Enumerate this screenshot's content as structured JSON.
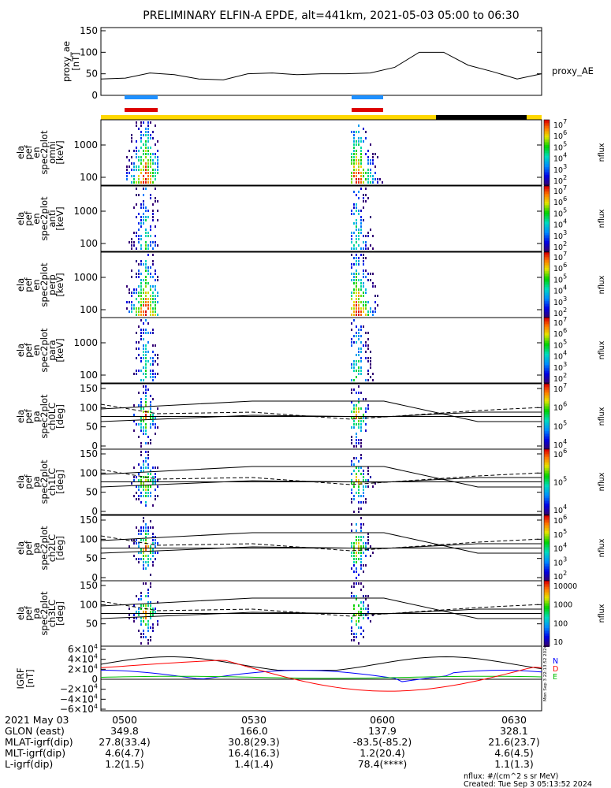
{
  "title": "PRELIMINARY ELFIN-A EPDE, alt=441km, 2021-05-03 05:00 to 06:30",
  "colors": {
    "blue": "#0000ff",
    "red": "#ff0000",
    "green": "#00c000",
    "yellow": "#ffd700",
    "black": "#000000",
    "ae_blue": "#1e90ff",
    "bar_red": "#dd0000"
  },
  "proxy_ae": {
    "ylabel_lines": [
      "proxy_ae",
      "[nT]"
    ],
    "series_label": "proxy_AE",
    "yticks": [
      "0",
      "50",
      "100",
      "150"
    ],
    "ylim": [
      0,
      150
    ],
    "x": [
      "05:00",
      "05:05",
      "05:10",
      "05:15",
      "05:20",
      "05:25",
      "05:30",
      "05:35",
      "05:40",
      "05:45",
      "05:50",
      "05:55",
      "06:00",
      "06:05",
      "06:10",
      "06:15",
      "06:20",
      "06:25",
      "06:30"
    ],
    "y": [
      38,
      40,
      52,
      48,
      38,
      36,
      50,
      52,
      48,
      50,
      50,
      52,
      65,
      100,
      100,
      70,
      55,
      38,
      50
    ]
  },
  "panels": [
    {
      "name": "omni",
      "label_lines": [
        "ela",
        "pef",
        "en",
        "spec2plot",
        "omni",
        "[keV]"
      ],
      "yticks": [
        "100",
        "1000"
      ],
      "cbar_ticks": [
        "10^2",
        "10^3",
        "10^4",
        "10^5",
        "10^6",
        "10^7"
      ],
      "cbar_label": "nflux"
    },
    {
      "name": "anti",
      "label_lines": [
        "ela",
        "pef",
        "en",
        "spec2plot",
        "anti",
        "[keV]"
      ],
      "yticks": [
        "100",
        "1000"
      ],
      "cbar_ticks": [
        "10^2",
        "10^3",
        "10^4",
        "10^5",
        "10^6",
        "10^7"
      ],
      "cbar_label": "nflux"
    },
    {
      "name": "perp",
      "label_lines": [
        "ela",
        "pef",
        "en",
        "spec2plot",
        "perp",
        "[keV]"
      ],
      "yticks": [
        "100",
        "1000"
      ],
      "cbar_ticks": [
        "10^2",
        "10^3",
        "10^4",
        "10^5",
        "10^6",
        "10^7"
      ],
      "cbar_label": "nflux"
    },
    {
      "name": "para",
      "label_lines": [
        "ela",
        "pef",
        "en",
        "spec2plot",
        "para",
        "[keV]"
      ],
      "yticks": [
        "100",
        "1000"
      ],
      "cbar_ticks": [
        "10^2",
        "10^3",
        "10^4",
        "10^5",
        "10^6",
        "10^7"
      ],
      "cbar_label": "nflux"
    },
    {
      "name": "ch0LC",
      "label_lines": [
        "ela",
        "pef",
        "pa",
        "spec2plot",
        "ch0LC",
        "[deg]"
      ],
      "yticks": [
        "0",
        "50",
        "100",
        "150"
      ],
      "cbar_ticks": [
        "10^4",
        "10^5",
        "10^6",
        "10^7"
      ],
      "cbar_label": "nflux"
    },
    {
      "name": "ch1LC",
      "label_lines": [
        "ela",
        "pef",
        "pa",
        "spec2plot",
        "ch1LC",
        "[deg]"
      ],
      "yticks": [
        "0",
        "50",
        "100",
        "150"
      ],
      "cbar_ticks": [
        "10^4",
        "10^5",
        "10^6"
      ],
      "cbar_label": "nflux"
    },
    {
      "name": "ch2LC",
      "label_lines": [
        "ela",
        "pef",
        "pa",
        "spec2plot",
        "ch2LC",
        "[deg]"
      ],
      "yticks": [
        "0",
        "50",
        "100",
        "150"
      ],
      "cbar_ticks": [
        "10^2",
        "10^3",
        "10^4",
        "10^5",
        "10^6"
      ],
      "cbar_label": "nflux"
    },
    {
      "name": "ch3LC",
      "label_lines": [
        "ela",
        "pef",
        "pa",
        "spec2plot",
        "ch3LC",
        "[deg]"
      ],
      "yticks": [
        "50",
        "100",
        "150"
      ],
      "cbar_ticks": [
        "10",
        "100",
        "1000",
        "10000"
      ],
      "cbar_label": "nflux"
    }
  ],
  "igrf": {
    "ylabel_lines": [
      "IGRF",
      "[nT]"
    ],
    "yticks": [
      "6×10^4",
      "4×10^4",
      "2×10^4",
      "0",
      "−2×10^4",
      "−4×10^4",
      "−6×10^4"
    ],
    "legend": [
      "N",
      "D",
      "E"
    ],
    "side_text": "Mon Sep 3 22:13:52 2024"
  },
  "footer": {
    "rows": [
      {
        "label": "2021 May 03",
        "vals": [
          "0500",
          "0530",
          "0600",
          "0630"
        ]
      },
      {
        "label": "GLON (east)",
        "vals": [
          "349.8",
          "166.0",
          "137.9",
          "328.1"
        ]
      },
      {
        "label": "MLAT-igrf(dip)",
        "vals": [
          "27.8(33.4)",
          "30.8(29.3)",
          "-83.5(-85.2)",
          "21.6(23.7)"
        ]
      },
      {
        "label": "MLT-igrf(dip)",
        "vals": [
          "4.6(4.7)",
          "16.4(16.3)",
          "1.2(20.4)",
          "4.6(4.5)"
        ]
      },
      {
        "label": "L-igrf(dip)",
        "vals": [
          "1.2(1.5)",
          "1.4(1.4)",
          "78.4(****)",
          "1.1(1.3)"
        ]
      }
    ],
    "units": "nflux: #/(cm^2 s sr MeV)",
    "created": "Created: Tue Sep  3 05:13:52 2024"
  }
}
